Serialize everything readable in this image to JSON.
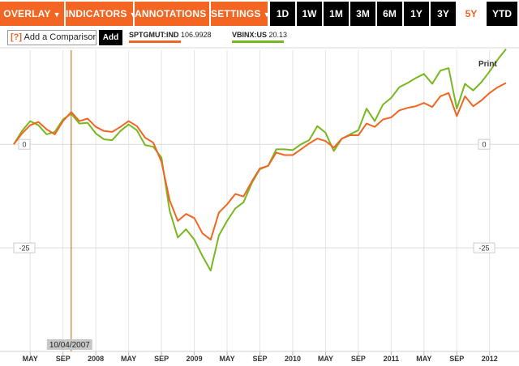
{
  "toolbar": {
    "menus": [
      {
        "label": "OVERLAY",
        "caret": "▼"
      },
      {
        "label": "INDICATORS",
        "caret": "▼"
      },
      {
        "label": "ANNOTATIONS",
        "caret": "▼"
      },
      {
        "label": "SETTINGS",
        "caret": "▼"
      }
    ],
    "ranges": [
      "1D",
      "1W",
      "1M",
      "3M",
      "6M",
      "1Y",
      "3Y",
      "5Y",
      "YTD"
    ],
    "active_range": "5Y"
  },
  "comparison": {
    "help_label": "[?]",
    "label": "Add a Comparison",
    "add_label": "Add"
  },
  "legend": [
    {
      "ticker": "SPTGMUT:IND",
      "value": "106.9928"
    },
    {
      "ticker": "VBINX:US",
      "value": "20.13"
    }
  ],
  "print_label": "Print",
  "cursor_date_label": "10/04/2007",
  "colors": {
    "accent": "#f26522",
    "series_orange": "#f26522",
    "series_green": "#77b81f",
    "grid": "#e4e4e4"
  },
  "chart_data": {
    "type": "line",
    "title": "",
    "xlabel": "",
    "ylabel": "",
    "x_tick_labels": [
      "MAY",
      "SEP",
      "2008",
      "MAY",
      "SEP",
      "2009",
      "MAY",
      "SEP",
      "2010",
      "MAY",
      "SEP",
      "2011",
      "MAY",
      "SEP",
      "2012"
    ],
    "y_tick_labels": [
      "0",
      "-25"
    ],
    "y_ticks": [
      0,
      -25
    ],
    "ylim": [
      -50,
      23.5
    ],
    "grid": true,
    "x": [
      "2007-03",
      "2007-04",
      "2007-05",
      "2007-06",
      "2007-07",
      "2007-08",
      "2007-09",
      "2007-10",
      "2007-11",
      "2007-12",
      "2008-01",
      "2008-02",
      "2008-03",
      "2008-04",
      "2008-05",
      "2008-06",
      "2008-07",
      "2008-08",
      "2008-09",
      "2008-10",
      "2008-11",
      "2008-12",
      "2009-01",
      "2009-02",
      "2009-03",
      "2009-04",
      "2009-05",
      "2009-06",
      "2009-07",
      "2009-08",
      "2009-09",
      "2009-10",
      "2009-11",
      "2009-12",
      "2010-01",
      "2010-02",
      "2010-03",
      "2010-04",
      "2010-05",
      "2010-06",
      "2010-07",
      "2010-08",
      "2010-09",
      "2010-10",
      "2010-11",
      "2010-12",
      "2011-01",
      "2011-02",
      "2011-03",
      "2011-04",
      "2011-05",
      "2011-06",
      "2011-07",
      "2011-08",
      "2011-09",
      "2011-10",
      "2011-11",
      "2011-12",
      "2012-01",
      "2012-02",
      "2012-03"
    ],
    "series": [
      {
        "name": "SPTGMUT:IND",
        "color": "#f26522",
        "values": [
          0,
          2.6,
          4.6,
          5.4,
          3.6,
          2.4,
          5.6,
          7.8,
          5.6,
          6.2,
          4.2,
          3.2,
          3.0,
          4.2,
          5.6,
          4.4,
          1.6,
          0.4,
          -4.2,
          -13.5,
          -18.5,
          -16.8,
          -17.8,
          -21.5,
          -23.0,
          -16.5,
          -14.5,
          -12.0,
          -12.6,
          -9.0,
          -5.8,
          -5.2,
          -2.0,
          -2.6,
          -2.6,
          -1.2,
          0.2,
          1.4,
          0.8,
          -0.8,
          1.4,
          2.2,
          2.2,
          5.0,
          4.2,
          6.0,
          6.5,
          8.2,
          8.8,
          9.2,
          10.0,
          9.0,
          11.6,
          12.4,
          6.8,
          11.6,
          9.2,
          10.6,
          12.4,
          13.8,
          14.8
        ]
      },
      {
        "name": "VBINX:US",
        "color": "#77b81f",
        "values": [
          0,
          3.2,
          5.6,
          4.6,
          2.4,
          3.0,
          6.0,
          7.4,
          5.0,
          5.2,
          2.6,
          1.2,
          1.0,
          3.2,
          4.8,
          3.4,
          -0.2,
          -0.6,
          -3.2,
          -16.0,
          -22.5,
          -20.5,
          -23.0,
          -27.0,
          -30.5,
          -22.0,
          -18.5,
          -15.5,
          -14.0,
          -9.4,
          -6.0,
          -5.2,
          -1.2,
          -1.2,
          -1.4,
          0.0,
          1.0,
          4.4,
          2.8,
          -1.6,
          1.4,
          2.4,
          3.4,
          8.6,
          5.6,
          9.6,
          11.2,
          13.8,
          14.8,
          16.0,
          17.0,
          14.6,
          17.8,
          18.4,
          8.6,
          14.6,
          13.0,
          15.0,
          17.6,
          20.5,
          23.0
        ]
      }
    ],
    "cursor_x": "2007-10"
  }
}
